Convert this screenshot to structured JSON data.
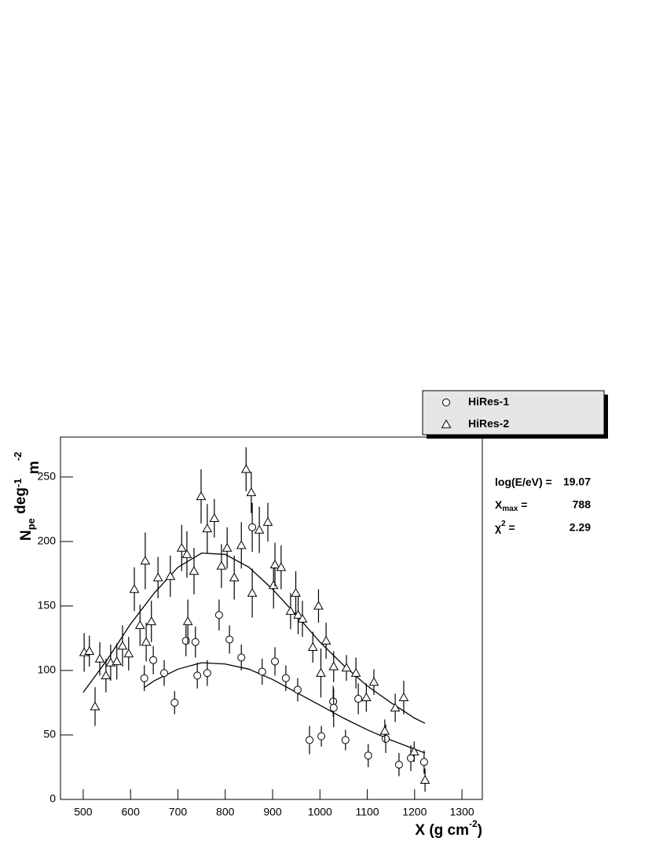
{
  "chart_data": {
    "type": "scatter",
    "xlabel_parts": [
      "X (g cm",
      "-2",
      ")"
    ],
    "ylabel_parts": [
      "N",
      "pe",
      " deg",
      "-1",
      " m",
      "-2"
    ],
    "xlim": [
      452,
      1343
    ],
    "ylim": [
      0,
      281
    ],
    "xticks": [
      500,
      600,
      700,
      800,
      900,
      1000,
      1100,
      1200,
      1300
    ],
    "yticks": [
      0,
      50,
      100,
      150,
      200,
      250
    ],
    "color": "#000000",
    "legend": "top-right",
    "series": [
      {
        "name": "HiRes-1",
        "marker": "circle",
        "x": [
          629,
          648,
          671,
          693,
          717,
          737,
          741,
          762,
          787,
          809,
          834,
          857,
          878,
          905,
          928,
          953,
          978,
          1003,
          1028,
          1029,
          1054,
          1081,
          1102,
          1139,
          1167,
          1192,
          1220
        ],
        "values": [
          94,
          108,
          98,
          75,
          123,
          122,
          96,
          98,
          143,
          124,
          110,
          211,
          99,
          107,
          94,
          85,
          46,
          49,
          76,
          71,
          46,
          78,
          34,
          47,
          27,
          32,
          29
        ],
        "errors": [
          10,
          11,
          10,
          9,
          12,
          12,
          10,
          10,
          12,
          11,
          10,
          19,
          10,
          11,
          10,
          9,
          11,
          8,
          12,
          15,
          8,
          12,
          9,
          11,
          9,
          10,
          9
        ]
      },
      {
        "name": "HiRes-2",
        "marker": "triangle",
        "x": [
          502,
          513,
          525,
          535,
          548,
          558,
          571,
          583,
          596,
          608,
          620,
          631,
          633,
          644,
          658,
          684,
          708,
          719,
          721,
          734,
          749,
          762,
          777,
          792,
          804,
          819,
          834,
          844,
          855,
          857,
          872,
          890,
          902,
          905,
          918,
          938,
          949,
          954,
          963,
          985,
          997,
          1002,
          1013,
          1029,
          1056,
          1076,
          1098,
          1114,
          1137,
          1159,
          1177,
          1199,
          1222
        ],
        "values": [
          114,
          115,
          72,
          109,
          96,
          106,
          107,
          119,
          113,
          163,
          135,
          185,
          122,
          138,
          172,
          173,
          195,
          190,
          138,
          177,
          235,
          210,
          218,
          181,
          195,
          172,
          197,
          256,
          238,
          160,
          209,
          215,
          166,
          182,
          180,
          146,
          160,
          143,
          140,
          118,
          150,
          98,
          123,
          103,
          102,
          98,
          79,
          91,
          53,
          71,
          79,
          37,
          15
        ],
        "errors": [
          15,
          12,
          15,
          13,
          13,
          14,
          14,
          16,
          13,
          17,
          16,
          22,
          15,
          16,
          16,
          16,
          18,
          18,
          17,
          18,
          21,
          19,
          15,
          17,
          16,
          17,
          18,
          17,
          16,
          19,
          18,
          15,
          18,
          17,
          17,
          14,
          17,
          15,
          14,
          12,
          13,
          19,
          14,
          12,
          10,
          12,
          11,
          10,
          9,
          11,
          13,
          8,
          9
        ]
      }
    ],
    "fits": [
      {
        "x": [
          630,
          650,
          700,
          750,
          800,
          850,
          900,
          950,
          1000,
          1050,
          1100,
          1150,
          1200,
          1222
        ],
        "values": [
          87,
          92,
          101,
          106,
          105,
          101,
          93,
          83,
          73,
          63,
          54,
          46,
          39,
          36
        ]
      },
      {
        "x": [
          500,
          550,
          600,
          650,
          700,
          750,
          800,
          850,
          900,
          950,
          1000,
          1050,
          1100,
          1150,
          1200,
          1222
        ],
        "values": [
          83,
          108,
          136,
          160,
          180,
          191,
          190,
          180,
          163,
          143,
          122,
          104,
          88,
          75,
          63,
          59
        ]
      }
    ],
    "stats": [
      {
        "label_parts": [
          "log(E/eV) ="
        ],
        "value": "19.07"
      },
      {
        "label_parts": [
          "X",
          "max",
          " ="
        ],
        "value": "788"
      },
      {
        "label_parts": [
          "χ",
          "2",
          " ="
        ],
        "value": "2.29"
      }
    ]
  }
}
